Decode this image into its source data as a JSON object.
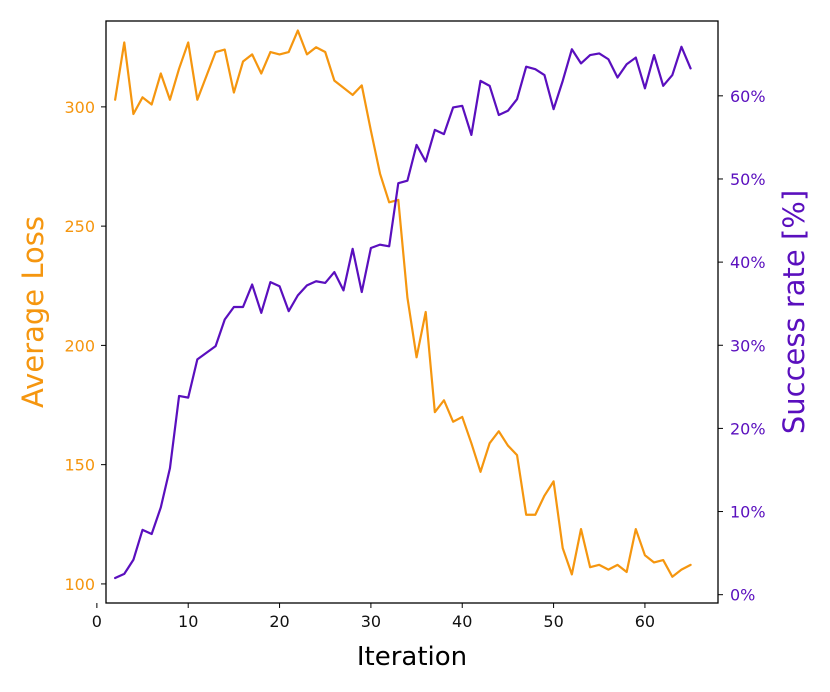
{
  "chart_data": {
    "type": "line",
    "title": "",
    "xlabel": "Iteration",
    "ylabel_left": "Average Loss",
    "ylabel_right": "Success rate [%]",
    "xlim": [
      1,
      68
    ],
    "ylim_left": [
      92,
      336
    ],
    "ylim_right": [
      -1,
      69
    ],
    "x_ticks": [
      "0",
      "10",
      "20",
      "30",
      "40",
      "50",
      "60"
    ],
    "y_left_ticks": [
      "100",
      "150",
      "200",
      "250",
      "300"
    ],
    "y_right_ticks": [
      "0%",
      "10%",
      "20%",
      "30%",
      "40%",
      "50%",
      "60%"
    ],
    "grid": false,
    "x": [
      2,
      3,
      4,
      5,
      6,
      7,
      8,
      9,
      10,
      11,
      12,
      13,
      14,
      15,
      16,
      17,
      18,
      19,
      20,
      21,
      22,
      23,
      24,
      25,
      26,
      27,
      28,
      29,
      30,
      31,
      32,
      33,
      34,
      35,
      36,
      37,
      38,
      39,
      40,
      41,
      42,
      43,
      44,
      45,
      46,
      47,
      48,
      49,
      50,
      51,
      52,
      53,
      54,
      55,
      56,
      57,
      58,
      59,
      60,
      61,
      62,
      63,
      64,
      65
    ],
    "series": [
      {
        "axis": "left",
        "color": "#f5960f",
        "values": [
          303,
          327,
          297,
          304,
          301,
          314,
          303,
          316,
          327,
          303,
          313,
          323,
          324,
          306,
          319,
          322,
          314,
          323,
          322,
          323,
          332,
          322,
          325,
          323,
          311,
          308,
          305,
          309,
          290,
          272,
          260,
          261,
          220,
          195,
          214,
          172,
          177,
          168,
          170,
          159,
          147,
          159,
          164,
          158,
          154,
          129,
          129,
          137,
          143,
          115,
          104,
          123,
          107,
          108,
          106,
          108,
          105,
          123,
          112,
          109,
          110,
          103,
          106,
          108
        ],
        "name": ""
      },
      {
        "axis": "right",
        "color": "#5a0fbe",
        "values": [
          2,
          2.5,
          4.2,
          7.8,
          7.3,
          10.5,
          15.2,
          23.9,
          23.7,
          28.3,
          29.1,
          29.9,
          33.1,
          34.6,
          34.6,
          37.3,
          33.9,
          37.6,
          37.1,
          34.1,
          36.0,
          37.2,
          37.7,
          37.5,
          38.8,
          36.6,
          41.6,
          36.4,
          41.7,
          42.1,
          41.9,
          49.5,
          49.8,
          54.1,
          52.1,
          55.9,
          55.4,
          58.6,
          58.8,
          55.3,
          61.8,
          61.2,
          57.7,
          58.2,
          59.6,
          63.5,
          63.2,
          62.5,
          58.4,
          61.8,
          65.6,
          63.9,
          64.9,
          65.1,
          64.4,
          62.2,
          63.8,
          64.6,
          60.9,
          64.9,
          61.2,
          62.5,
          65.9,
          63.3
        ],
        "name": ""
      }
    ]
  }
}
